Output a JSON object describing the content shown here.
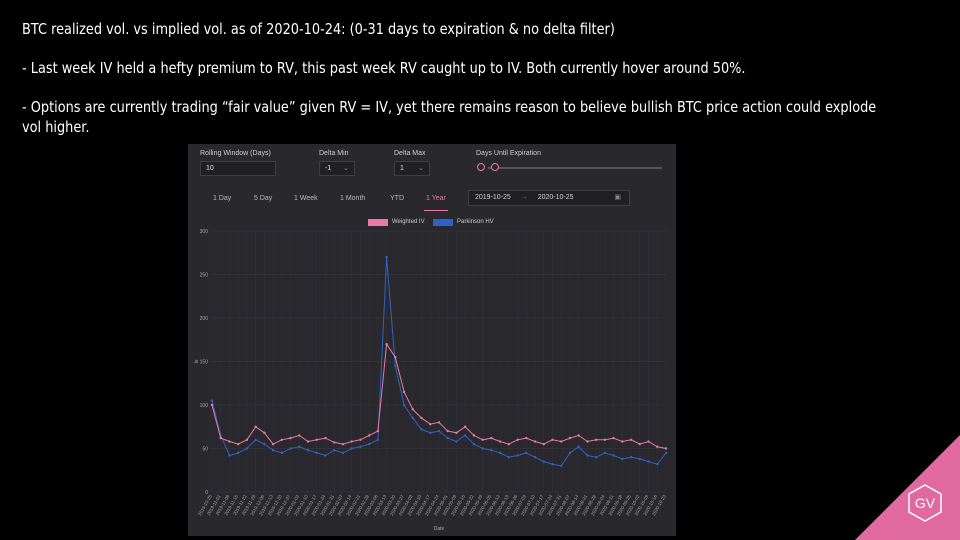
{
  "slide": {
    "line1": "BTC realized vol. vs implied vol. as of 2020-10-24: (0-31 days to expiration & no delta filter)",
    "line2": "- Last week IV held a hefty premium to RV, this past week RV caught up to IV. Both currently hover around 50%.",
    "line3": "- Options are currently trading “fair value” given RV = IV, yet there remains reason to believe bullish BTC price action could explode",
    "line4": "vol higher.",
    "logo_text": "GV"
  },
  "controls": {
    "rolling_window_label": "Rolling Window (Days)",
    "rolling_window_value": "10",
    "delta_min_label": "Delta Min",
    "delta_min_value": "-1",
    "delta_max_label": "Delta Max",
    "delta_max_value": "1",
    "expiration_label": "Days Until Expiration",
    "ranges": [
      "1 Day",
      "5 Day",
      "1 Week",
      "1 Month",
      "YTD",
      "1 Year"
    ],
    "active_range": "1 Year",
    "date_from": "2019-10-25",
    "date_sep": "→",
    "date_to": "2020-10-25"
  },
  "colors": {
    "iv": "#e87aa5",
    "hv": "#2f62c8",
    "accent": "#e87aa5",
    "panel": "#28282d"
  },
  "chart_data": {
    "type": "line",
    "xlabel": "Date",
    "ylabel": "Iv",
    "ylim": [
      0,
      300
    ],
    "yticks": [
      0,
      50,
      100,
      150,
      200,
      250,
      300
    ],
    "grid": true,
    "legend_position": "top-center",
    "x": [
      "2019-10-25",
      "2019-11-01",
      "2019-11-08",
      "2019-11-15",
      "2019-11-22",
      "2019-11-29",
      "2019-12-06",
      "2019-12-13",
      "2019-12-20",
      "2019-12-27",
      "2020-01-03",
      "2020-01-10",
      "2020-01-17",
      "2020-01-24",
      "2020-01-31",
      "2020-02-07",
      "2020-02-14",
      "2020-02-21",
      "2020-02-28",
      "2020-03-06",
      "2020-03-13",
      "2020-03-20",
      "2020-03-27",
      "2020-04-03",
      "2020-04-10",
      "2020-04-17",
      "2020-04-24",
      "2020-05-01",
      "2020-05-08",
      "2020-05-15",
      "2020-05-22",
      "2020-05-29",
      "2020-06-05",
      "2020-06-12",
      "2020-06-19",
      "2020-06-26",
      "2020-07-03",
      "2020-07-10",
      "2020-07-17",
      "2020-07-24",
      "2020-07-31",
      "2020-08-07",
      "2020-08-14",
      "2020-08-21",
      "2020-08-28",
      "2020-09-04",
      "2020-09-11",
      "2020-09-18",
      "2020-09-25",
      "2020-10-02",
      "2020-10-09",
      "2020-10-16",
      "2020-10-23"
    ],
    "x_tick_labels": [
      "2019-10-25",
      "2019-11-01",
      "2019-11-08",
      "2019-11-15",
      "2019-11-22",
      "2019-11-29",
      "2019-12-06",
      "2019-12-13",
      "2019-12-20",
      "2019-12-27",
      "2020-01-03",
      "2020-01-10",
      "2020-01-17",
      "2020-01-24",
      "2020-01-31",
      "2020-02-07",
      "2020-02-14",
      "2020-02-21",
      "2020-02-28",
      "2020-03-06",
      "2020-03-13",
      "2020-03-20",
      "2020-03-27",
      "2020-04-03",
      "2020-04-10",
      "2020-04-17",
      "2020-04-24",
      "2020-05-01",
      "2020-05-08",
      "2020-05-15",
      "2020-05-22",
      "2020-05-29",
      "2020-06-05",
      "2020-06-12",
      "2020-06-19",
      "2020-06-26",
      "2020-07-03",
      "2020-07-10",
      "2020-07-17",
      "2020-07-24",
      "2020-07-31",
      "2020-08-07",
      "2020-08-14",
      "2020-08-21",
      "2020-08-28",
      "2020-09-04",
      "2020-09-11",
      "2020-09-18",
      "2020-09-25",
      "2020-10-02",
      "2020-10-09",
      "2020-10-16",
      "2020-10-23"
    ],
    "series": [
      {
        "name": "Weighted IV",
        "color": "#e87aa5",
        "values": [
          100,
          62,
          58,
          55,
          60,
          75,
          68,
          55,
          60,
          62,
          65,
          58,
          60,
          62,
          57,
          55,
          58,
          60,
          65,
          70,
          170,
          155,
          115,
          95,
          85,
          78,
          80,
          70,
          68,
          75,
          65,
          60,
          62,
          58,
          55,
          60,
          62,
          58,
          55,
          60,
          58,
          62,
          65,
          58,
          60,
          60,
          62,
          58,
          60,
          55,
          58,
          52,
          50
        ]
      },
      {
        "name": "Parkinson HV",
        "color": "#2f62c8",
        "values": [
          105,
          65,
          42,
          45,
          50,
          60,
          55,
          48,
          45,
          50,
          52,
          48,
          45,
          42,
          48,
          45,
          50,
          52,
          55,
          60,
          270,
          145,
          100,
          85,
          72,
          68,
          70,
          62,
          58,
          65,
          55,
          50,
          48,
          45,
          40,
          42,
          45,
          40,
          35,
          32,
          30,
          45,
          52,
          42,
          40,
          45,
          42,
          38,
          40,
          38,
          35,
          32,
          45
        ]
      }
    ]
  }
}
